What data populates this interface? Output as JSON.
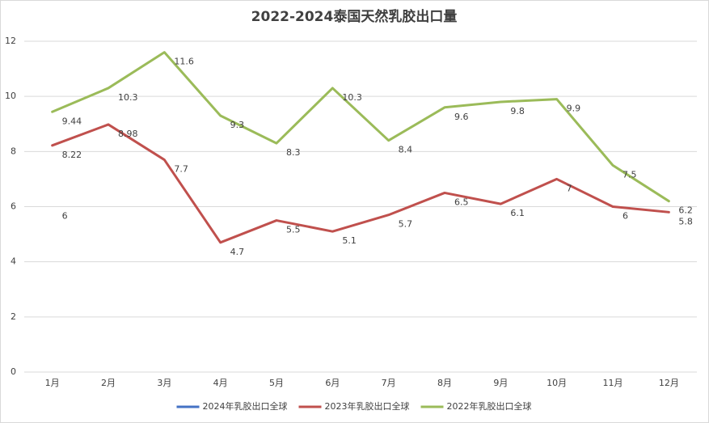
{
  "chart_data": {
    "type": "line",
    "title": "2022-2024泰国天然乳胶出口量",
    "categories": [
      "1月",
      "2月",
      "3月",
      "4月",
      "5月",
      "6月",
      "7月",
      "8月",
      "9月",
      "10月",
      "11月",
      "12月"
    ],
    "series": [
      {
        "name": "2024年乳胶出口全球",
        "color": "#4472c4",
        "values": [
          6,
          null,
          null,
          null,
          null,
          null,
          null,
          null,
          null,
          null,
          null,
          null
        ]
      },
      {
        "name": "2023年乳胶出口全球",
        "color": "#c0504d",
        "values": [
          8.22,
          8.98,
          7.7,
          4.7,
          5.5,
          5.1,
          5.7,
          6.5,
          6.1,
          7,
          6,
          5.8
        ]
      },
      {
        "name": "2022年乳胶出口全球",
        "color": "#9bbb59",
        "values": [
          9.44,
          10.3,
          11.6,
          9.3,
          8.3,
          10.3,
          8.4,
          9.6,
          9.8,
          9.9,
          7.5,
          6.2
        ]
      }
    ],
    "ylim": [
      0,
      12
    ],
    "yticks": [
      0,
      2,
      4,
      6,
      8,
      10,
      12
    ],
    "grid": true,
    "legend": "bottom"
  }
}
